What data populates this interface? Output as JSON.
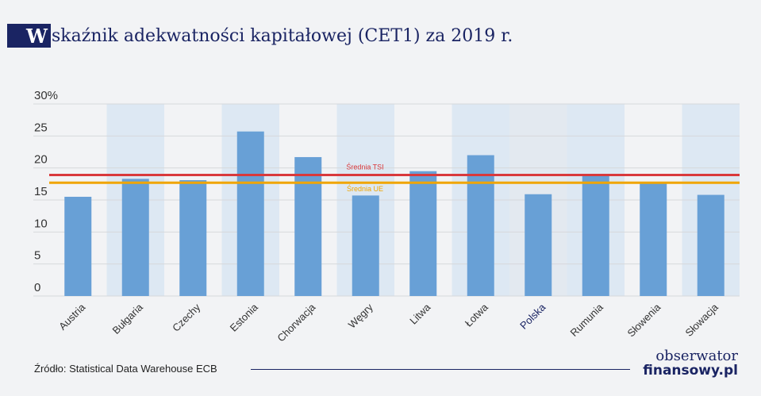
{
  "title": {
    "initial": "W",
    "rest": "skaźnik adekwatności kapitałowej (CET1) za 2019 r."
  },
  "chart_data": {
    "type": "bar",
    "categories": [
      "Austria",
      "Bułgaria",
      "Czechy",
      "Estonia",
      "Chorwacja",
      "Węgry",
      "Litwa",
      "Łotwa",
      "Polska",
      "Rumunia",
      "Słowenia",
      "Słowacja"
    ],
    "values": [
      15.5,
      18.3,
      18.1,
      25.7,
      21.7,
      15.7,
      19.5,
      22.0,
      15.9,
      19.0,
      17.6,
      15.8
    ],
    "y_unit_label": "30%",
    "y_ticks": [
      0,
      5,
      10,
      15,
      20,
      25,
      30
    ],
    "ylim": [
      0,
      30
    ],
    "highlight_category": "Polska",
    "reference_lines": [
      {
        "name": "Średnia TSI",
        "value": 18.9,
        "color": "#d9393c"
      },
      {
        "name": "Średnia UE",
        "value": 17.7,
        "color": "#f0a500"
      }
    ],
    "colors": {
      "bar": "#68a0d6",
      "band": "#dde8f3",
      "band_highlight": "#e3e9f0",
      "grid": "#d6d8db"
    },
    "grid": true
  },
  "source": "Źródło: Statistical Data Warehouse ECB",
  "logo": {
    "top": "obserwator",
    "bottom": "finansowy.pl"
  }
}
